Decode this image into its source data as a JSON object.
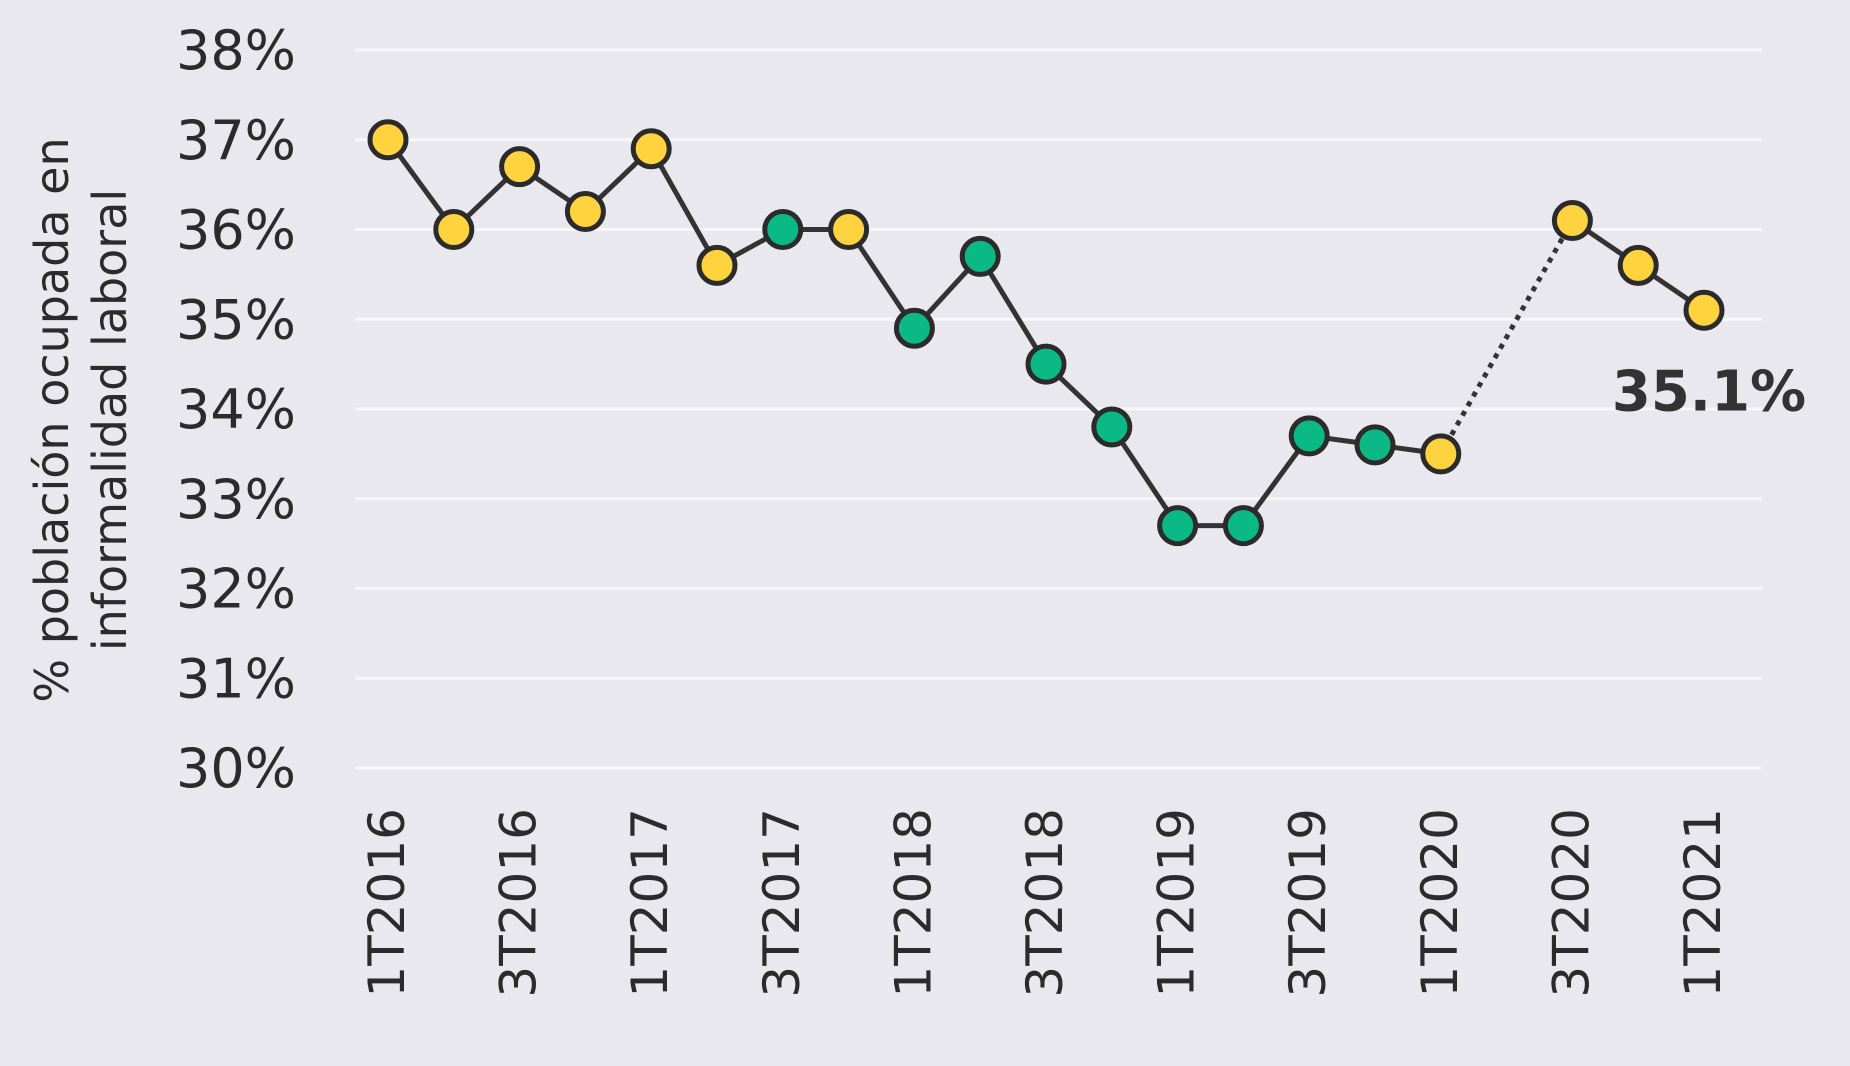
{
  "chart_data": {
    "type": "line",
    "title": "",
    "ylabel": "% población ocupada en informalidad laboral",
    "xlabel": "",
    "ylim": [
      30,
      38
    ],
    "yticks": [
      30,
      31,
      32,
      33,
      34,
      35,
      36,
      37,
      38
    ],
    "ytick_labels": [
      "30%",
      "31%",
      "32%",
      "33%",
      "34%",
      "35%",
      "36%",
      "37%",
      "38%"
    ],
    "x": [
      "1T2016",
      "2T2016",
      "3T2016",
      "4T2016",
      "1T2017",
      "2T2017",
      "3T2017",
      "4T2017",
      "1T2018",
      "2T2018",
      "3T2018",
      "4T2018",
      "1T2019",
      "2T2019",
      "3T2019",
      "4T2019",
      "1T2020",
      "2T2020",
      "3T2020",
      "4T2020",
      "1T2021"
    ],
    "xtick_labels": [
      "1T2016",
      "3T2016",
      "1T2017",
      "3T2017",
      "1T2018",
      "3T2018",
      "1T2019",
      "3T2019",
      "1T2020",
      "3T2020",
      "1T2021"
    ],
    "values": [
      37.0,
      36.0,
      36.7,
      36.2,
      36.9,
      35.6,
      36.0,
      36.0,
      34.9,
      35.7,
      34.5,
      33.8,
      32.7,
      32.7,
      33.7,
      33.6,
      33.5,
      null,
      36.1,
      35.6,
      35.1
    ],
    "point_colors": [
      "#ffd33d",
      "#ffd33d",
      "#ffd33d",
      "#ffd33d",
      "#ffd33d",
      "#ffd33d",
      "#0bb986",
      "#ffd33d",
      "#0bb986",
      "#0bb986",
      "#0bb986",
      "#0bb986",
      "#0bb986",
      "#0bb986",
      "#0bb986",
      "#0bb986",
      "#ffd33d",
      null,
      "#ffd33d",
      "#ffd33d",
      "#ffd33d"
    ],
    "gap_after": "1T2020",
    "annotation": {
      "text": "35.1%",
      "x": "1T2021",
      "y": 35.1
    },
    "grid": true,
    "line_color": "#333333"
  }
}
